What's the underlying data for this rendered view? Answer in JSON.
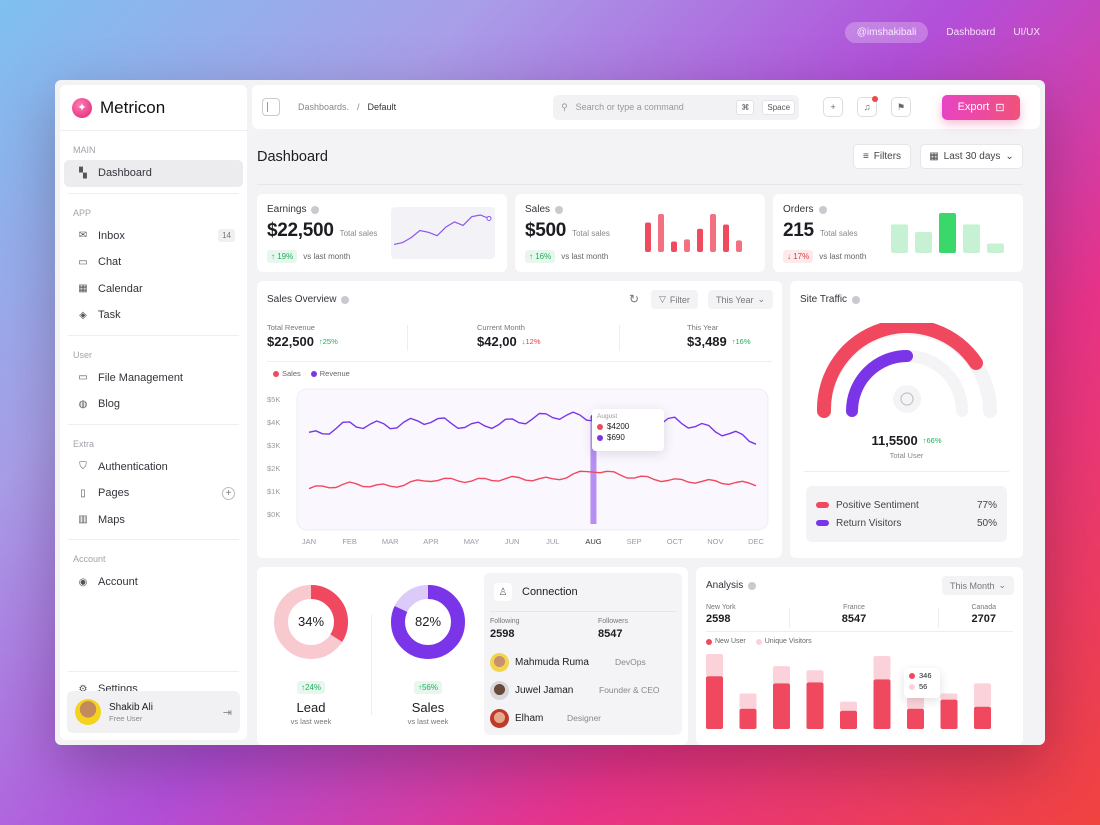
{
  "topnav": {
    "handle": "@imshakibali",
    "dashboard": "Dashboard",
    "uiux": "UI/UX"
  },
  "brand": {
    "name": "Metricon"
  },
  "sidebar": {
    "sections": {
      "main": "MAIN",
      "app": "APP",
      "user": "User",
      "extra": "Extra",
      "account": "Account"
    },
    "items": [
      {
        "label": "Dashboard",
        "icon": "dashboard-icon"
      },
      {
        "label": "Inbox",
        "icon": "mail-icon",
        "badge": "14"
      },
      {
        "label": "Chat",
        "icon": "chat-icon"
      },
      {
        "label": "Calendar",
        "icon": "calendar-icon"
      },
      {
        "label": "Task",
        "icon": "layers-icon"
      },
      {
        "label": "File Management",
        "icon": "folder-icon"
      },
      {
        "label": "Blog",
        "icon": "globe-icon"
      },
      {
        "label": "Authentication",
        "icon": "shield-icon"
      },
      {
        "label": "Pages",
        "icon": "file-icon"
      },
      {
        "label": "Maps",
        "icon": "map-icon"
      },
      {
        "label": "Account",
        "icon": "user-icon"
      },
      {
        "label": "Settings",
        "icon": "settings-icon"
      }
    ],
    "user": {
      "name": "Shakib Ali",
      "role": "Free User"
    }
  },
  "header": {
    "crumb_parent": "Dashboards.",
    "crumb_sep": "/",
    "crumb_current": "Default",
    "search_placeholder": "Search or type a command",
    "kbd_cmd": "⌘",
    "kbd_space": "Space",
    "export_label": "Export"
  },
  "page": {
    "title": "Dashboard",
    "filters_label": "Filters",
    "range_label": "Last 30 days"
  },
  "stats": [
    {
      "title": "Earnings",
      "value": "$22,500",
      "sub": "Total sales",
      "change": "↑ 19%",
      "dir": "up",
      "vs": "vs last month"
    },
    {
      "title": "Sales",
      "value": "$500",
      "sub": "Total sales",
      "change": "↑ 16%",
      "dir": "up",
      "vs": "vs last month"
    },
    {
      "title": "Orders",
      "value": "215",
      "sub": "Total sales",
      "change": "↓ 17%",
      "dir": "down",
      "vs": "vs last month"
    }
  ],
  "sales_overview": {
    "title": "Sales Overview",
    "filter_label": "Filter",
    "period_label": "This Year",
    "kpis": [
      {
        "label": "Total Revenue",
        "value": "$22,500",
        "change": "↑25%",
        "dir": "up"
      },
      {
        "label": "Current Month",
        "value": "$42,00",
        "change": "↓12%",
        "dir": "down"
      },
      {
        "label": "This Year",
        "value": "$3,489",
        "change": "↑16%",
        "dir": "up"
      }
    ],
    "tooltip": {
      "month": "August",
      "sales": "$4200",
      "revenue": "$690"
    }
  },
  "site_traffic": {
    "title": "Site Traffic",
    "total": "11,5500",
    "change": "↑66%",
    "total_label": "Total User",
    "rows": [
      {
        "label": "Positive Sentiment",
        "value": "77%",
        "color": "#f0495f"
      },
      {
        "label": "Return Visitors",
        "value": "50%",
        "color": "#7a35e8"
      }
    ]
  },
  "donuts": [
    {
      "pct": "34%",
      "change": "↑24%",
      "label": "Lead",
      "vs": "vs last week",
      "fraction": 0.34,
      "color": "#f0495f",
      "track": "#f9c9d0"
    },
    {
      "pct": "82%",
      "change": "↑56%",
      "label": "Sales",
      "vs": "vs last week",
      "fraction": 0.82,
      "color": "#7a35e8",
      "track": "#dccaf8"
    }
  ],
  "connection": {
    "title": "Connection",
    "following_label": "Following",
    "following": "2598",
    "followers_label": "Followers",
    "followers": "8547",
    "people": [
      {
        "name": "Mahmuda Ruma",
        "role": "DevOps"
      },
      {
        "name": "Juwel Jaman",
        "role": "Founder & CEO"
      },
      {
        "name": "Elham",
        "role": "Designer"
      }
    ]
  },
  "analysis": {
    "title": "Analysis",
    "period_label": "This Month",
    "regions": [
      {
        "name": "New York",
        "value": "2598"
      },
      {
        "name": "France",
        "value": "8547"
      },
      {
        "name": "Canada",
        "value": "2707"
      }
    ],
    "legend_new": "New User",
    "legend_unique": "Unique Visitors",
    "tooltip_a": "346",
    "tooltip_b": "56"
  },
  "chart_data": [
    {
      "type": "line",
      "title": "Sales Overview",
      "categories": [
        "JAN",
        "FEB",
        "MAR",
        "APR",
        "MAY",
        "JUN",
        "JUL",
        "AUG",
        "SEP",
        "OCT",
        "NOV",
        "DEC"
      ],
      "yticks": [
        "$5K",
        "$4K",
        "$3K",
        "$2K",
        "$1K",
        "$0K"
      ],
      "ylim": [
        0,
        5000
      ],
      "series": [
        {
          "name": "Sales",
          "color": "#f0495f",
          "values": [
            1100,
            1300,
            1200,
            1500,
            1450,
            1550,
            1500,
            1900,
            1600,
            1450,
            1400,
            1300
          ]
        },
        {
          "name": "Revenue",
          "color": "#7a35e8",
          "values": [
            3400,
            3900,
            3850,
            4100,
            3800,
            4000,
            4300,
            4200,
            3900,
            4050,
            3650,
            3200
          ]
        }
      ]
    },
    {
      "type": "bar",
      "title": "Analysis",
      "series": [
        {
          "name": "New User",
          "color": "#f0495f",
          "values": [
            52,
            20,
            45,
            46,
            18,
            49,
            20,
            29,
            22
          ]
        },
        {
          "name": "Unique Visitors",
          "color": "#fbd2da",
          "values": [
            22,
            15,
            17,
            12,
            9,
            23,
            12,
            6,
            23
          ]
        }
      ]
    },
    {
      "type": "line",
      "title": "Earnings",
      "values": [
        5,
        6,
        9,
        13,
        12,
        10,
        15,
        18,
        16,
        21,
        22,
        20
      ]
    },
    {
      "type": "bar",
      "title": "Sales",
      "values": [
        28,
        36,
        10,
        12,
        22,
        36,
        26,
        11
      ]
    },
    {
      "type": "bar",
      "title": "Orders",
      "values": [
        30,
        22,
        42,
        30,
        10
      ]
    }
  ]
}
